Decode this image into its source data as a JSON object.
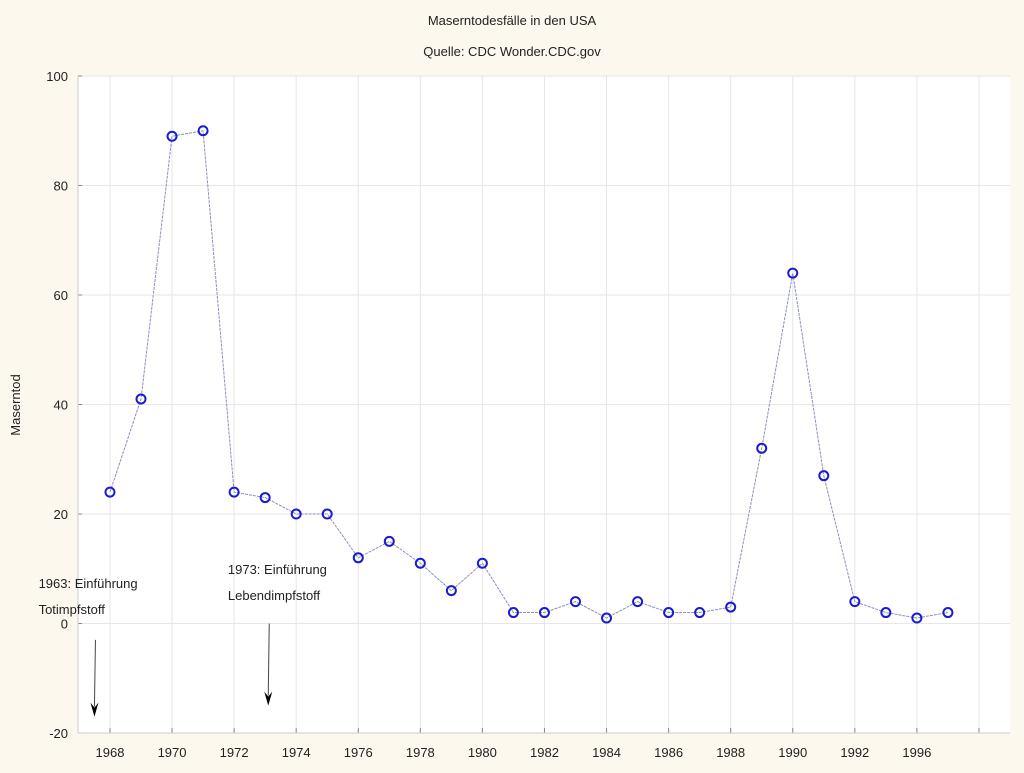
{
  "chart_data": {
    "type": "line",
    "title": "Maserntodesfälle in den USA",
    "subtitle": "Quelle: CDC Wonder.CDC.gov",
    "xlabel": "",
    "ylabel": "Maserntod",
    "ylim": [
      -20,
      100
    ],
    "yticks": [
      -20,
      0,
      20,
      40,
      60,
      80,
      100
    ],
    "xlim_index": [
      -1.03,
      29.0
    ],
    "xticks": [
      {
        "index": 0,
        "label": "1968"
      },
      {
        "index": 2,
        "label": "1970"
      },
      {
        "index": 4,
        "label": "1972"
      },
      {
        "index": 6,
        "label": "1974"
      },
      {
        "index": 8,
        "label": "1976"
      },
      {
        "index": 10,
        "label": "1978"
      },
      {
        "index": 12,
        "label": "1980"
      },
      {
        "index": 14,
        "label": "1982"
      },
      {
        "index": 16,
        "label": "1984"
      },
      {
        "index": 18,
        "label": "1986"
      },
      {
        "index": 20,
        "label": "1988"
      },
      {
        "index": 22,
        "label": "1990"
      },
      {
        "index": 24,
        "label": "1992"
      },
      {
        "index": 26,
        "label": "1996"
      },
      {
        "index": 28,
        "label": ""
      }
    ],
    "values": [
      24,
      41,
      89,
      90,
      24,
      23,
      20,
      20,
      12,
      15,
      11,
      6,
      11,
      2,
      2,
      4,
      1,
      4,
      2,
      2,
      3,
      32,
      64,
      27,
      4,
      2,
      1,
      2
    ],
    "grid": true,
    "annotations": [
      {
        "lines": [
          "1963: Einführung",
          "Totimpfstoff"
        ],
        "text_index": -2.3,
        "text_y": 6.5,
        "arrow_index": -0.5,
        "arrow_from": -3,
        "arrow_to": -17
      },
      {
        "lines": [
          "1973: Einführung",
          "Lebendimpfstoff"
        ],
        "text_index": 3.8,
        "text_y": 9,
        "arrow_index": 5.1,
        "arrow_from": 0,
        "arrow_to": -15
      }
    ],
    "colors": {
      "marker": "#1a1ad0",
      "line": "#8a8fc0",
      "grid": "#e6e6ec",
      "background": "#fcf8ee"
    }
  }
}
